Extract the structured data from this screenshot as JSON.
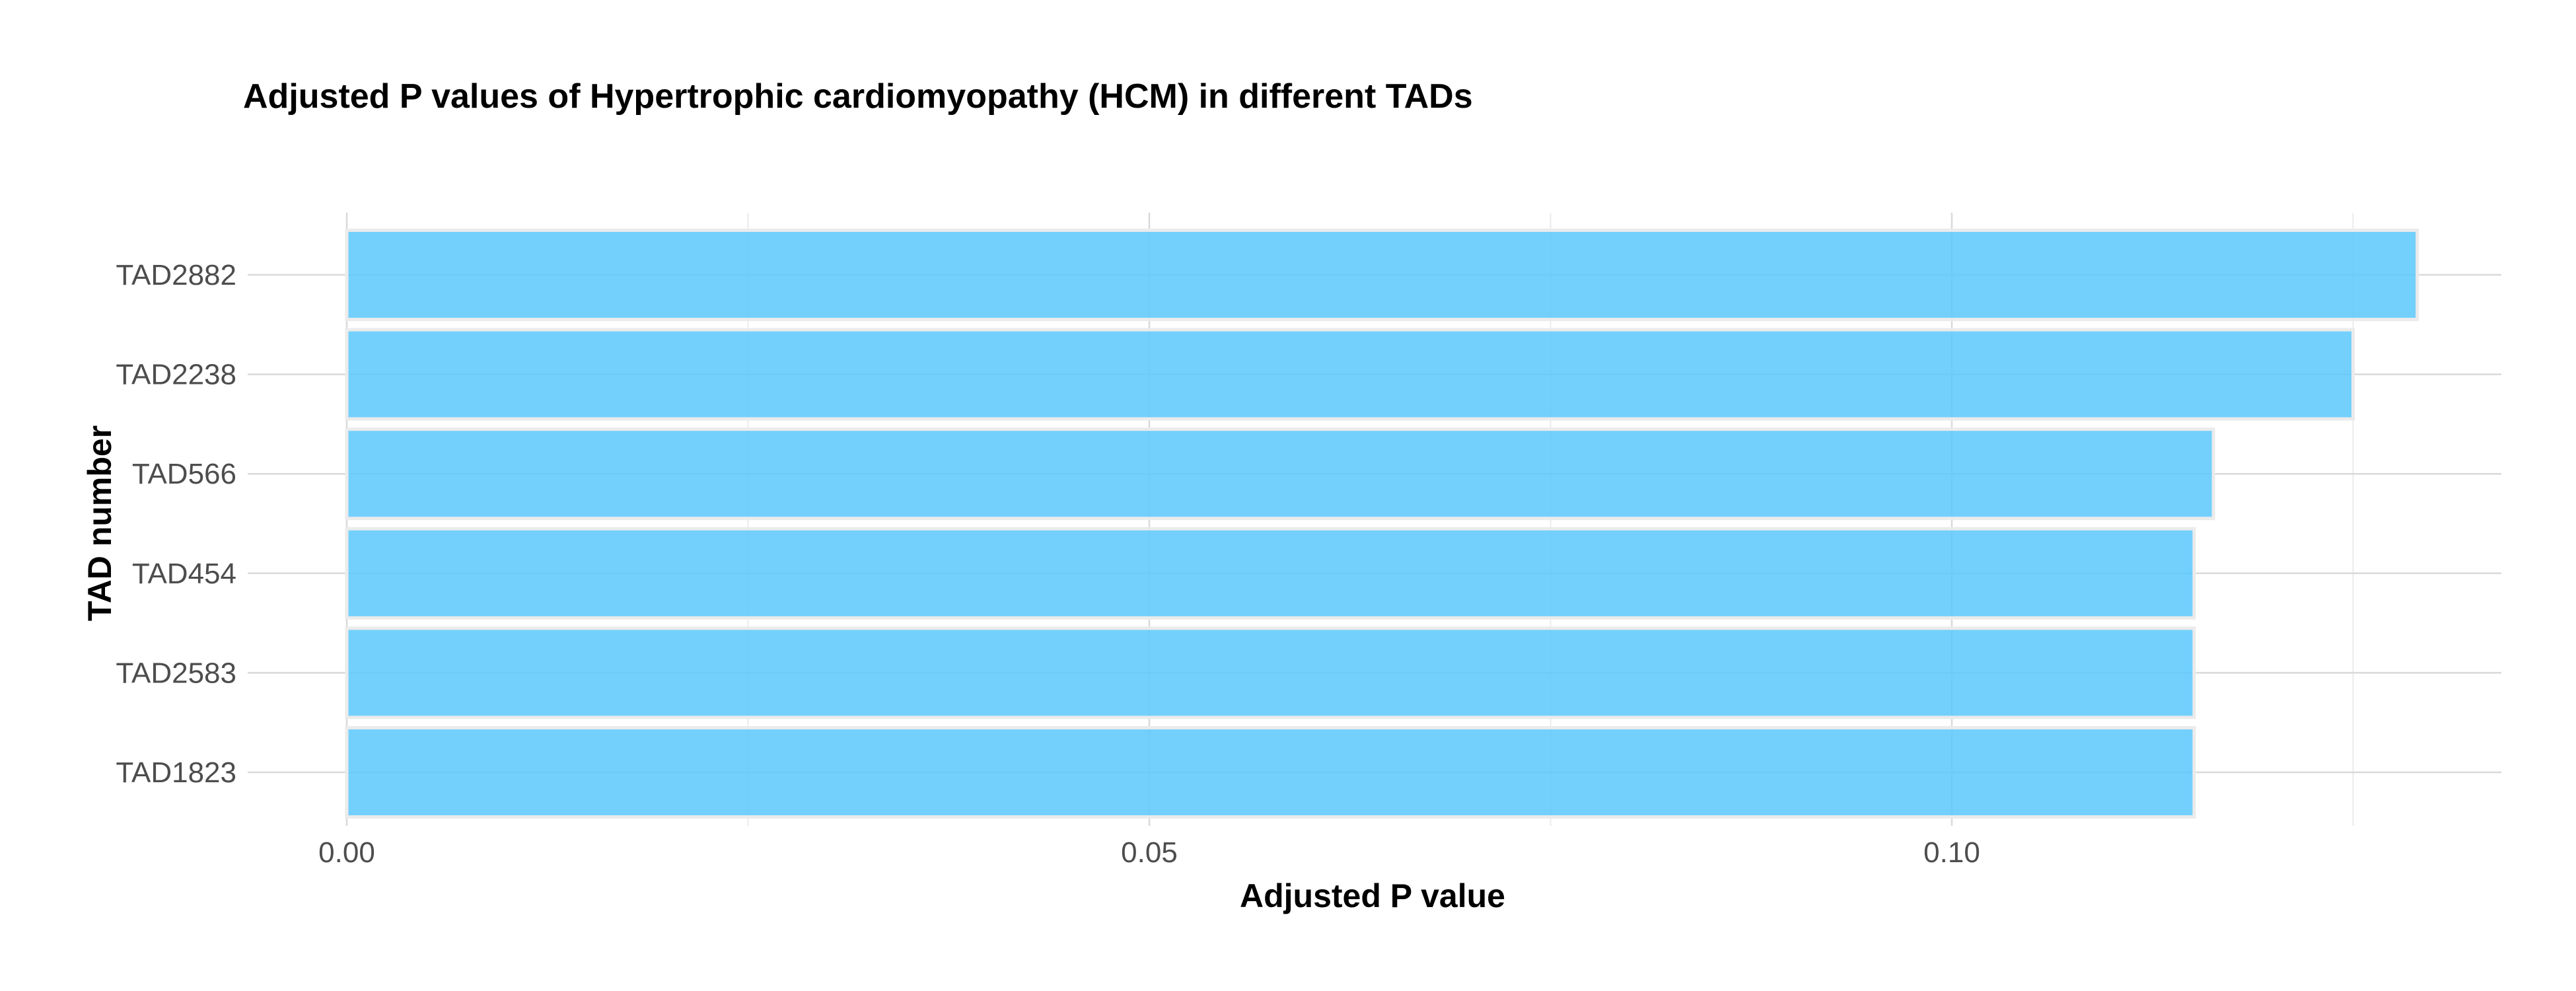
{
  "chart_data": {
    "type": "bar",
    "orientation": "horizontal",
    "title": "Adjusted P values of Hypertrophic cardiomyopathy (HCM) in different TADs",
    "xlabel": "Adjusted P value",
    "ylabel": "TAD number",
    "categories": [
      "TAD2882",
      "TAD2238",
      "TAD566",
      "TAD454",
      "TAD2583",
      "TAD1823"
    ],
    "values": [
      0.129,
      0.125,
      0.1163,
      0.1151,
      0.1151,
      0.1151
    ],
    "xlim": [
      0,
      0.135
    ],
    "x_ticks": [
      0.0,
      0.05,
      0.1
    ],
    "x_tick_labels": [
      "0.00",
      "0.05",
      "0.10"
    ],
    "grid": true,
    "colors": {
      "bar": "#5bc8fb",
      "bar_border": "#ebebeb"
    }
  }
}
